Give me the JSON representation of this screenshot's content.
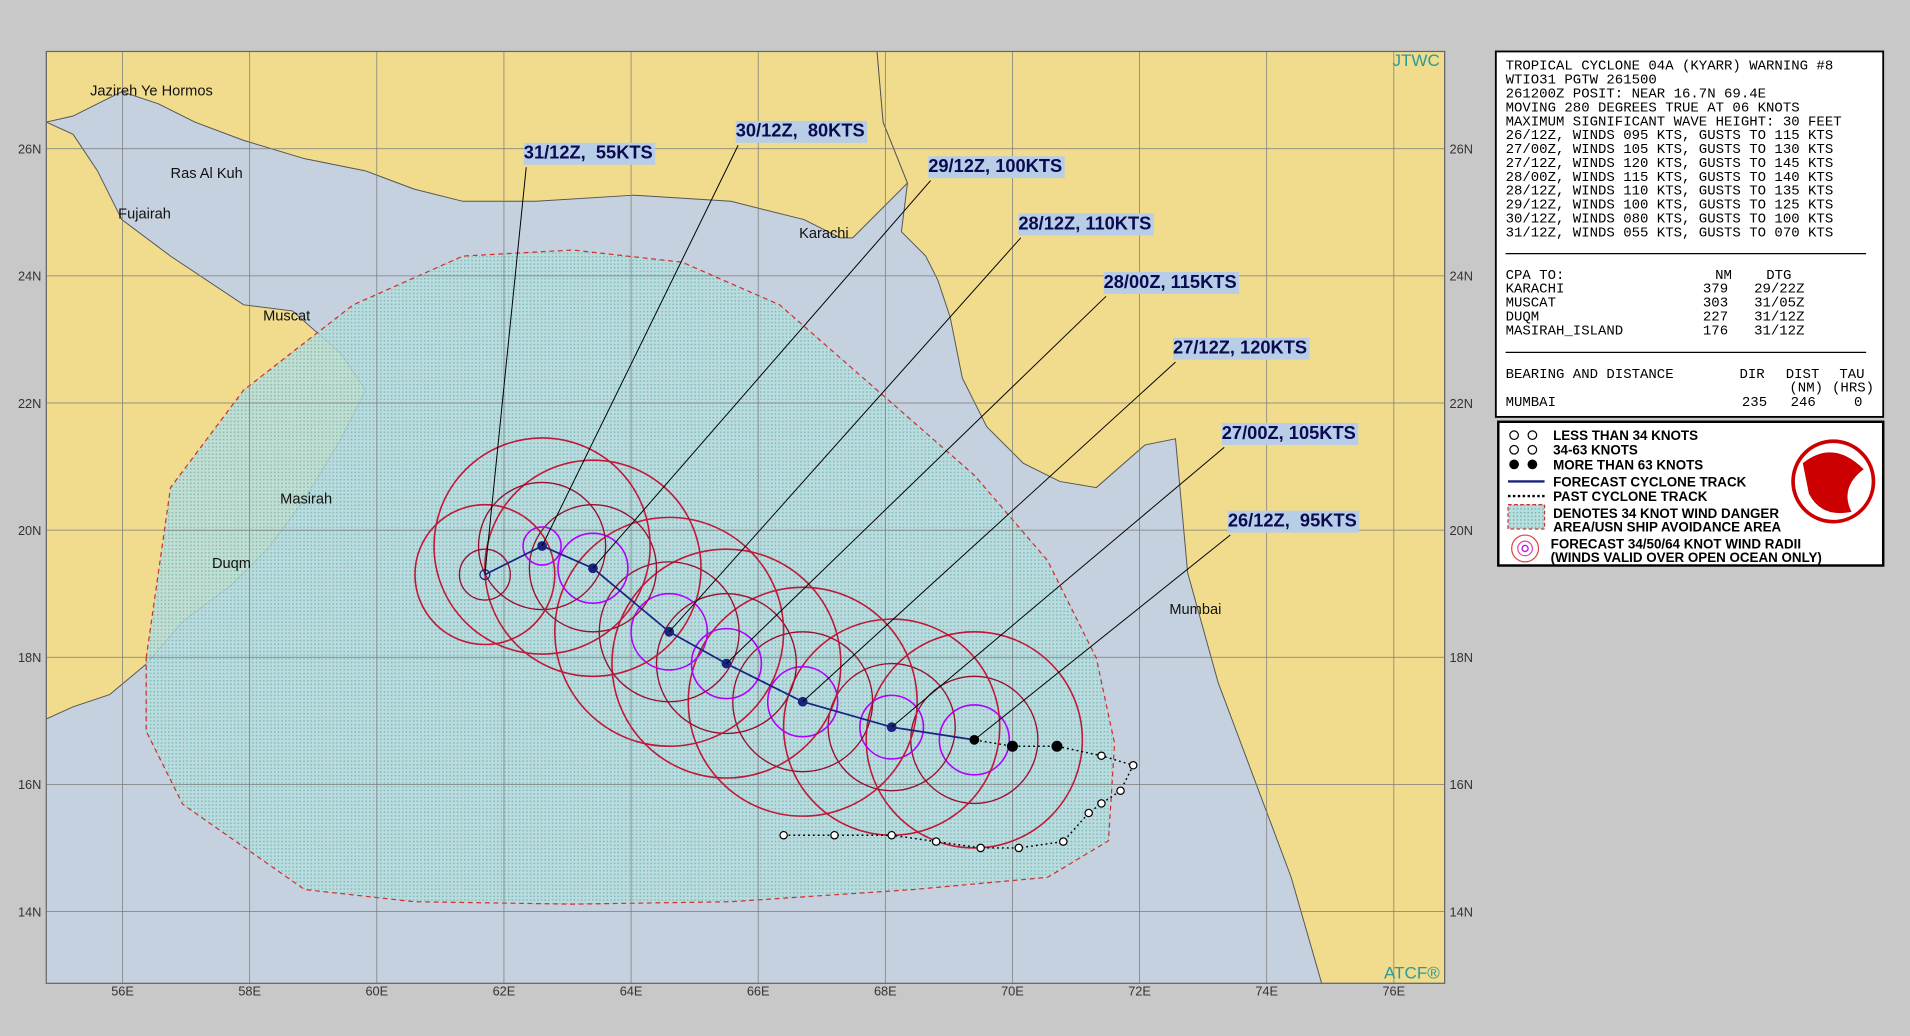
{
  "header": {
    "agency": "JTWC",
    "software": "ATCF®"
  },
  "warning": {
    "lines": [
      "TROPICAL CYCLONE 04A (KYARR) WARNING #8",
      "WTIO31 PGTW 261500",
      "261200Z POSIT: NEAR 16.7N 69.4E",
      "MOVING 280 DEGREES TRUE AT 06 KNOTS",
      "MAXIMUM SIGNIFICANT WAVE HEIGHT: 30 FEET",
      "26/12Z, WINDS 095 KTS, GUSTS TO 115 KTS",
      "27/00Z, WINDS 105 KTS, GUSTS TO 130 KTS",
      "27/12Z, WINDS 120 KTS, GUSTS TO 145 KTS",
      "28/00Z, WINDS 115 KTS, GUSTS TO 140 KTS",
      "28/12Z, WINDS 110 KTS, GUSTS TO 135 KTS",
      "29/12Z, WINDS 100 KTS, GUSTS TO 125 KTS",
      "30/12Z, WINDS 080 KTS, GUSTS TO 100 KTS",
      "31/12Z, WINDS 055 KTS, GUSTS TO 070 KTS"
    ],
    "cpa_header": [
      "CPA TO:",
      "NM",
      "DTG"
    ],
    "cpa_rows": [
      [
        "KARACHI",
        "379",
        "29/22Z"
      ],
      [
        "MUSCAT",
        "303",
        "31/05Z"
      ],
      [
        "DUQM",
        "227",
        "31/12Z"
      ],
      [
        "MASIRAH_ISLAND",
        "176",
        "31/12Z"
      ]
    ],
    "bearing_header": [
      "BEARING AND DISTANCE",
      "DIR",
      "DIST",
      "TAU"
    ],
    "bearing_units": [
      "(NM)",
      "(HRS)"
    ],
    "bearing_row": [
      "MUMBAI",
      "235",
      "246",
      "0"
    ]
  },
  "map": {
    "xlim": [
      54.8,
      76.8
    ],
    "ylim": [
      12.87,
      27.53
    ],
    "xticks": [
      {
        "value": 56,
        "label": "56E"
      },
      {
        "value": 58,
        "label": "58E"
      },
      {
        "value": 60,
        "label": "60E"
      },
      {
        "value": 62,
        "label": "62E"
      },
      {
        "value": 64,
        "label": "64E"
      },
      {
        "value": 66,
        "label": "66E"
      },
      {
        "value": 68,
        "label": "68E"
      },
      {
        "value": 70,
        "label": "70E"
      },
      {
        "value": 72,
        "label": "72E"
      },
      {
        "value": 74,
        "label": "74E"
      },
      {
        "value": 76,
        "label": "76E"
      }
    ],
    "yticks": [
      {
        "value": 14,
        "label": "14N"
      },
      {
        "value": 16,
        "label": "16N"
      },
      {
        "value": 18,
        "label": "18N"
      },
      {
        "value": 20,
        "label": "20N"
      },
      {
        "value": 22,
        "label": "22N"
      },
      {
        "value": 24,
        "label": "24N"
      },
      {
        "value": 26,
        "label": "26N"
      }
    ]
  },
  "places": [
    "Jazireh Ye Hormos",
    "Ras Al Kuh",
    "Fujairah",
    "Muscat",
    "Masirah",
    "Duqm",
    "Karachi",
    "Mumbai"
  ],
  "forecast": [
    {
      "label": "26/12Z,  95KTS",
      "lon": 69.4,
      "lat": 16.7,
      "r34": 1.7,
      "r50": 1.0,
      "r64": 0.55
    },
    {
      "label": "27/00Z, 105KTS",
      "lon": 68.1,
      "lat": 16.9,
      "r34": 1.7,
      "r50": 1.0,
      "r64": 0.5
    },
    {
      "label": "27/12Z, 120KTS",
      "lon": 66.7,
      "lat": 17.3,
      "r34": 1.8,
      "r50": 1.1,
      "r64": 0.55
    },
    {
      "label": "28/00Z, 115KTS",
      "lon": 65.5,
      "lat": 17.9,
      "r34": 1.8,
      "r50": 1.1,
      "r64": 0.55
    },
    {
      "label": "28/12Z, 110KTS",
      "lon": 64.6,
      "lat": 18.4,
      "r34": 1.8,
      "r50": 1.1,
      "r64": 0.6
    },
    {
      "label": "29/12Z, 100KTS",
      "lon": 63.4,
      "lat": 19.4,
      "r34": 1.7,
      "r50": 1.0,
      "r64": 0.55
    },
    {
      "label": "30/12Z,  80KTS",
      "lon": 62.6,
      "lat": 19.75,
      "r34": 1.7,
      "r50": 1.0,
      "r64": 0.3
    },
    {
      "label": "31/12Z,  55KTS",
      "lon": 61.7,
      "lat": 19.3,
      "r34": 1.1,
      "r50": 0.4,
      "r64": 0
    }
  ],
  "past_track": {
    "lon": [
      66.4,
      67.2,
      68.1,
      68.8,
      69.5,
      70.1,
      70.8,
      71.2,
      71.4,
      71.7,
      71.9,
      71.4,
      70.7,
      70.0
    ],
    "lat": [
      15.2,
      15.2,
      15.2,
      15.1,
      15.0,
      15.0,
      15.1,
      15.55,
      15.7,
      15.9,
      16.3,
      16.45,
      16.6,
      16.6
    ]
  },
  "legend": [
    "LESS THAN 34 KNOTS",
    "34-63 KNOTS",
    "MORE THAN 63 KNOTS",
    "FORECAST CYCLONE TRACK",
    "PAST CYCLONE TRACK",
    "DENOTES 34 KNOT WIND DANGER",
    "AREA/USN SHIP AVOIDANCE AREA",
    "FORECAST 34/50/64 KNOT WIND RADII",
    "(WINDS VALID OVER OPEN OCEAN ONLY)"
  ]
}
